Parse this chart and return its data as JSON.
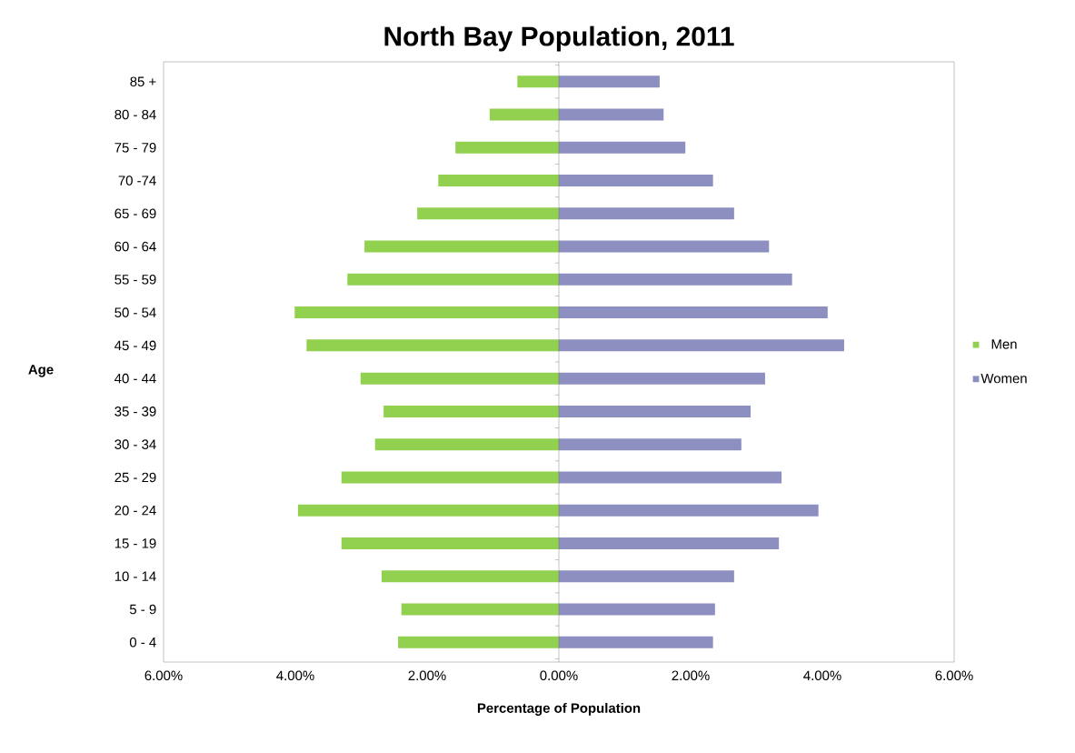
{
  "chart_data": {
    "type": "bar",
    "orientation": "horizontal",
    "title": "North Bay Population, 2011",
    "xlabel": "Percentage of Population",
    "ylabel": "Age",
    "categories": [
      "85 +",
      "80 - 84",
      "75 - 79",
      "70 -74",
      "65 - 69",
      "60 - 64",
      "55 - 59",
      "50 - 54",
      "45 - 49",
      "40 - 44",
      "35 - 39",
      "30 - 34",
      "25 - 29",
      "20 - 24",
      "15 - 19",
      "10 - 14",
      "5 - 9",
      "0 - 4"
    ],
    "series": [
      {
        "name": "Men",
        "color": "#92d050",
        "values": [
          -0.63,
          -1.05,
          -1.57,
          -1.83,
          -2.15,
          -2.95,
          -3.21,
          -4.01,
          -3.83,
          -3.01,
          -2.66,
          -2.79,
          -3.3,
          -3.96,
          -3.3,
          -2.69,
          -2.39,
          -2.44
        ]
      },
      {
        "name": "Women",
        "color": "#8c8fc0",
        "values": [
          1.53,
          1.59,
          1.92,
          2.34,
          2.66,
          3.19,
          3.54,
          4.08,
          4.33,
          3.13,
          2.91,
          2.77,
          3.38,
          3.94,
          3.34,
          2.66,
          2.37,
          2.34
        ]
      }
    ],
    "xlim": [
      -6,
      6
    ],
    "xticks": [
      {
        "value": -6,
        "label": "6.00%"
      },
      {
        "value": -4,
        "label": "4.00%"
      },
      {
        "value": -2,
        "label": "2.00%"
      },
      {
        "value": 0,
        "label": "0.00%"
      },
      {
        "value": 2,
        "label": "2.00%"
      },
      {
        "value": 4,
        "label": "4.00%"
      },
      {
        "value": 6,
        "label": "6.00%"
      }
    ],
    "legend": "right",
    "stacked": true
  }
}
